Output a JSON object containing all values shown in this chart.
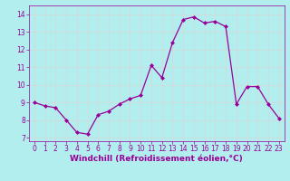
{
  "x": [
    0,
    1,
    2,
    3,
    4,
    5,
    6,
    7,
    8,
    9,
    10,
    11,
    12,
    13,
    14,
    15,
    16,
    17,
    18,
    19,
    20,
    21,
    22,
    23
  ],
  "y": [
    9.0,
    8.8,
    8.7,
    8.0,
    7.3,
    7.2,
    8.3,
    8.5,
    8.9,
    9.2,
    9.4,
    11.1,
    10.4,
    12.4,
    13.7,
    13.85,
    13.5,
    13.6,
    13.3,
    8.9,
    9.9,
    9.9,
    8.9,
    8.1
  ],
  "line_color": "#990099",
  "marker": "D",
  "marker_size": 2,
  "bg_color": "#b3eeee",
  "grid_color": "#ccdddd",
  "xlabel": "Windchill (Refroidissement éolien,°C)",
  "xlabel_color": "#990099",
  "tick_color": "#990099",
  "xlim": [
    -0.5,
    23.5
  ],
  "ylim": [
    6.8,
    14.5
  ],
  "yticks": [
    7,
    8,
    9,
    10,
    11,
    12,
    13,
    14
  ],
  "xticks": [
    0,
    1,
    2,
    3,
    4,
    5,
    6,
    7,
    8,
    9,
    10,
    11,
    12,
    13,
    14,
    15,
    16,
    17,
    18,
    19,
    20,
    21,
    22,
    23
  ],
  "tick_fontsize": 5.5,
  "xlabel_fontsize": 6.5
}
